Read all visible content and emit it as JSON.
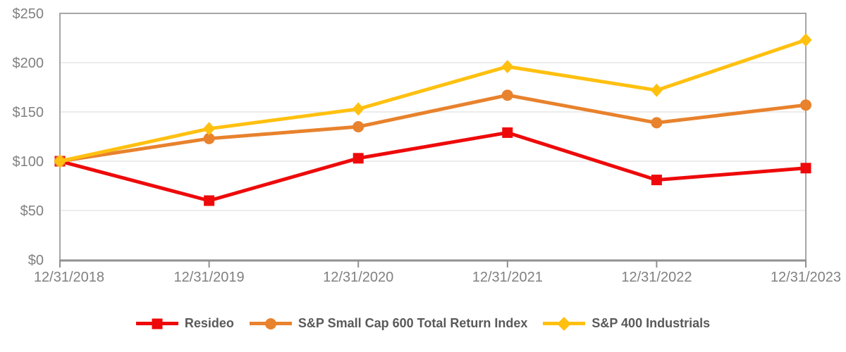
{
  "chart_data": {
    "type": "line",
    "x": [
      "12/31/2018",
      "12/31/2019",
      "12/31/2020",
      "12/31/2021",
      "12/31/2022",
      "12/31/2023"
    ],
    "y_tick_labels": [
      "$0",
      "$50",
      "$100",
      "$150",
      "$200",
      "$250"
    ],
    "ylim": [
      0,
      250
    ],
    "ytick_step": 50,
    "grid": true,
    "legend_position": "bottom",
    "series": [
      {
        "name": "Resideo",
        "marker": "square",
        "color": "#EE0A0A",
        "values": [
          100,
          60,
          103,
          129,
          81,
          93
        ]
      },
      {
        "name": "S&P Small Cap 600 Total Return Index",
        "marker": "circle",
        "color": "#E8822D",
        "values": [
          100,
          123,
          135,
          167,
          139,
          157
        ]
      },
      {
        "name": "S&P 400 Industrials",
        "marker": "diamond",
        "color": "#FFC010",
        "values": [
          100,
          133,
          153,
          196,
          172,
          223
        ]
      }
    ]
  },
  "style": {
    "plot_border_color": "#A6A6A6",
    "grid_color": "#E5E5E5",
    "axis_line_color": "#909090",
    "axis_label_color": "#808080",
    "legend_text_color": "#595959",
    "background_color": "#FFFFFF"
  }
}
